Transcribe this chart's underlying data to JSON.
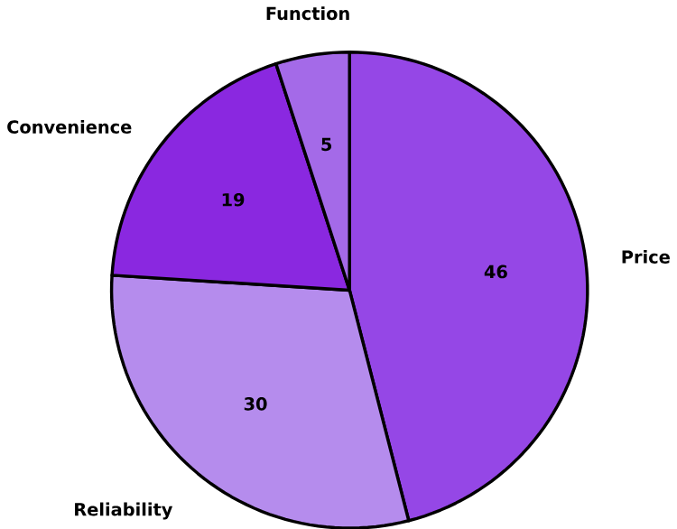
{
  "chart_data": {
    "type": "pie",
    "categories": [
      "Price",
      "Reliability",
      "Convenience",
      "Function"
    ],
    "values": [
      46,
      30,
      19,
      5
    ],
    "colors": [
      "#9547e6",
      "#b58ced",
      "#8a28e0",
      "#a46ae8"
    ],
    "data_labels": true
  }
}
